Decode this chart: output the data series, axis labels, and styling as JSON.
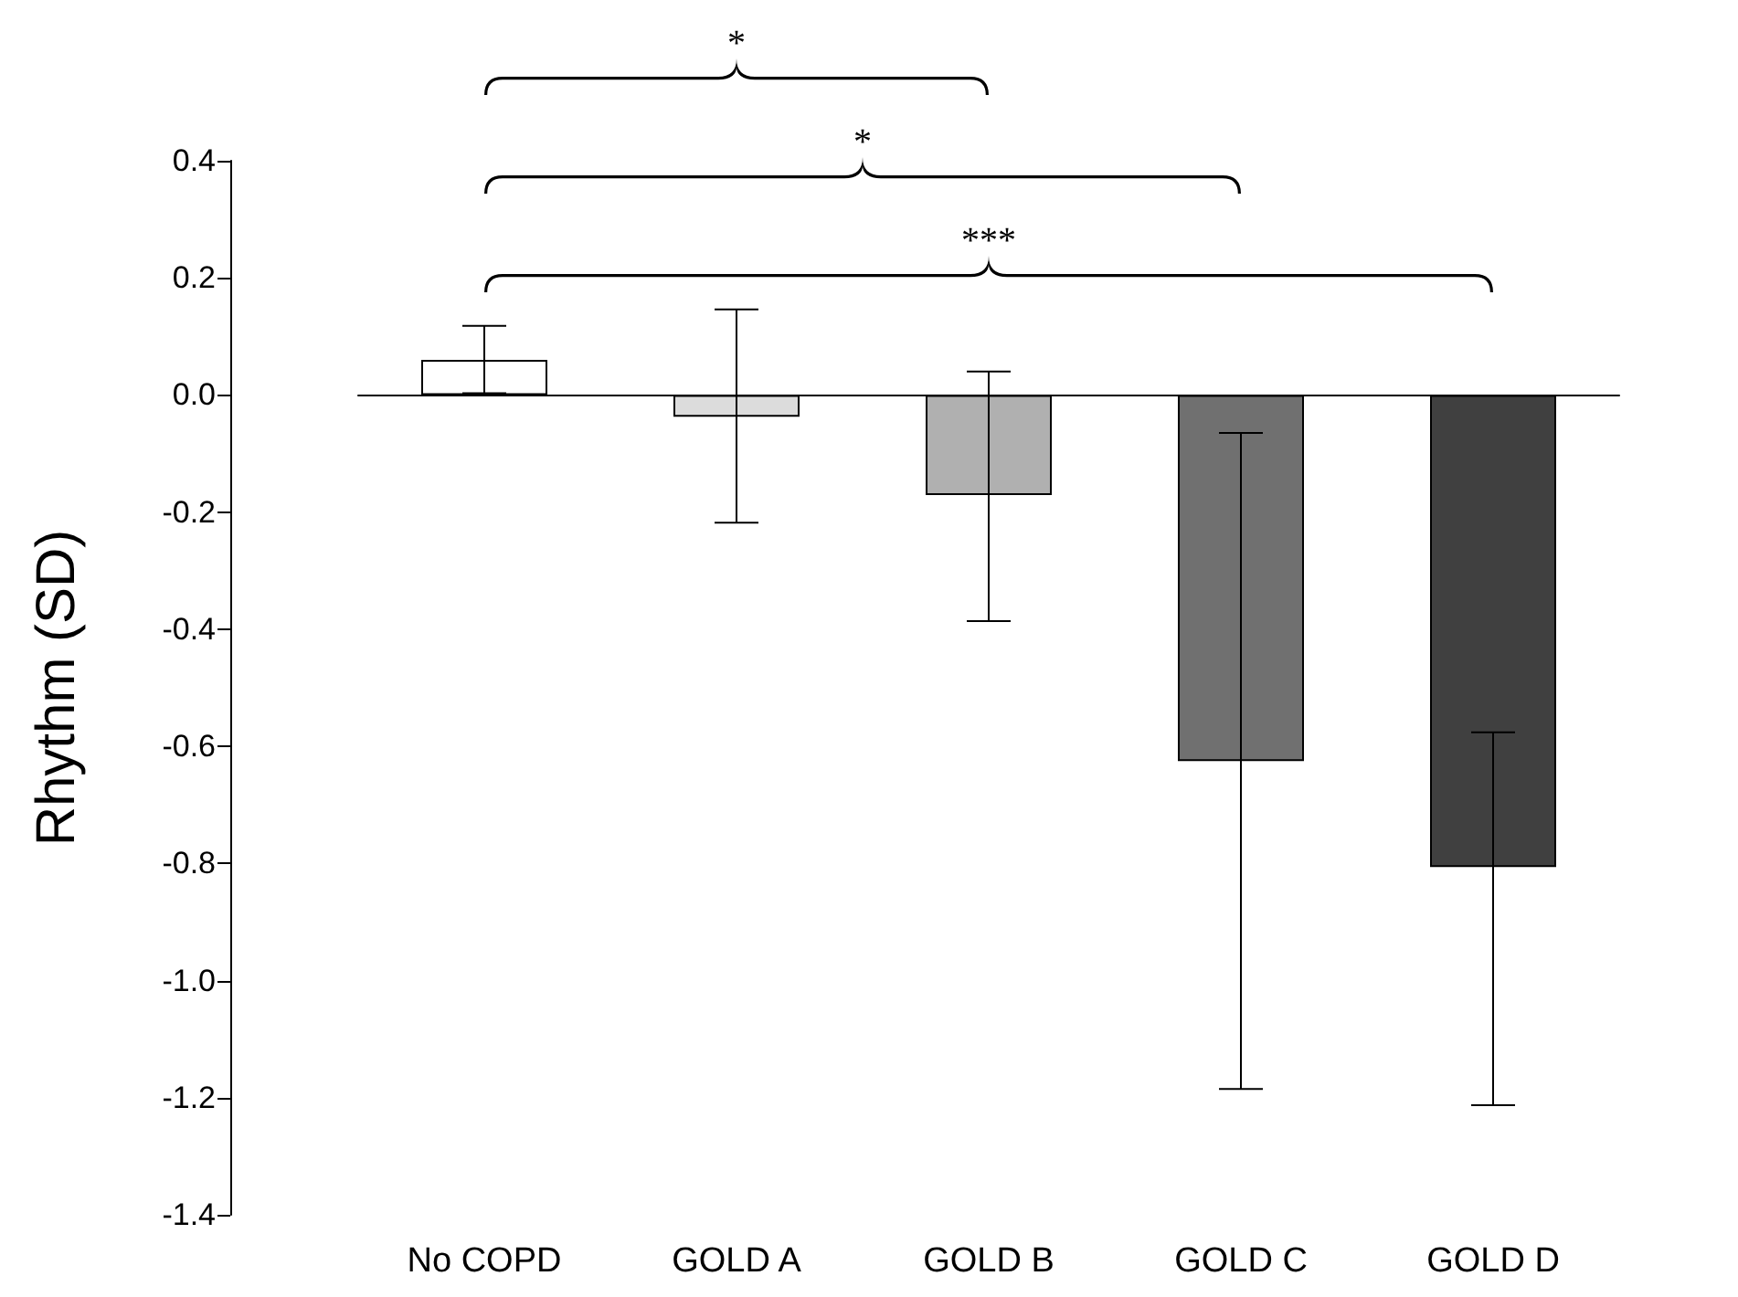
{
  "chart_data": {
    "type": "bar",
    "ylabel": "Rhythm (SD)",
    "categories": [
      "No COPD",
      "GOLD A",
      "GOLD B",
      "GOLD C",
      "GOLD D"
    ],
    "values": [
      0.06,
      -0.037,
      -0.171,
      -0.625,
      -0.806
    ],
    "colors": [
      "#ffffff",
      "#dcdcdc",
      "#b0b0b0",
      "#707070",
      "#404040"
    ],
    "errors": [
      [
        0.003,
        0.118
      ],
      [
        -0.218,
        0.146
      ],
      [
        -0.386,
        0.04
      ],
      [
        -1.185,
        -0.065
      ],
      [
        -1.213,
        -0.576
      ]
    ],
    "ylim": [
      -1.4,
      0.4
    ],
    "yticks": [
      {
        "value": -1.4,
        "label": "-1.4"
      },
      {
        "value": -1.2,
        "label": "-1.2"
      },
      {
        "value": -1.0,
        "label": "-1.0"
      },
      {
        "value": -0.8,
        "label": "-0.8"
      },
      {
        "value": -0.6,
        "label": "-0.6"
      },
      {
        "value": -0.4,
        "label": "-0.4"
      },
      {
        "value": -0.2,
        "label": "-0.2"
      },
      {
        "value": 0.0,
        "label": "0.0"
      },
      {
        "value": 0.2,
        "label": "0.2"
      },
      {
        "value": 0.4,
        "label": "0.4"
      }
    ],
    "annotations": [
      "*",
      "*",
      "***"
    ]
  }
}
